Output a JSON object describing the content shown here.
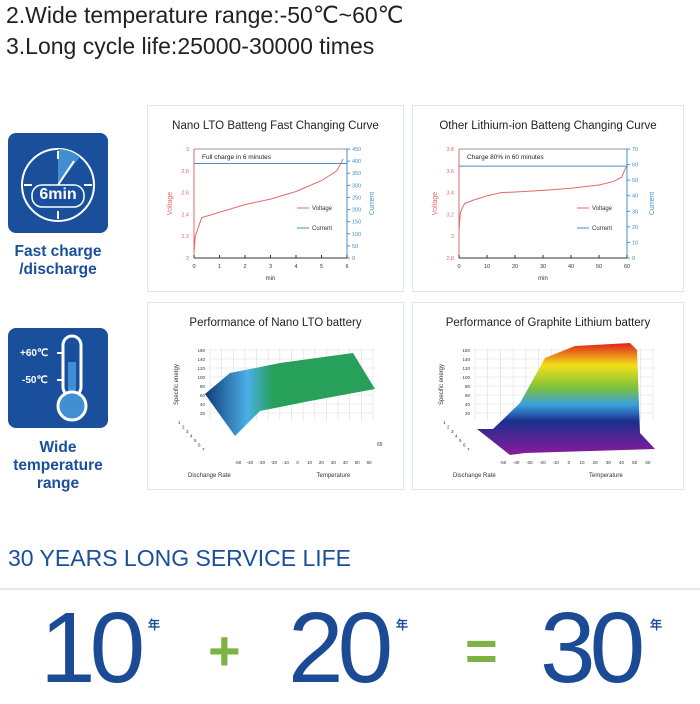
{
  "features_text": [
    "2.Wide temperature range:-50℃~60℃",
    "3.Long cycle life:25000-30000 times"
  ],
  "icons": [
    {
      "name": "stopwatch-icon",
      "label": "6min",
      "caption_lines": [
        "Fast charge",
        "/discharge"
      ]
    },
    {
      "name": "thermometer-icon",
      "high": "+60℃",
      "low": "-50℃",
      "caption_lines": [
        "Wide",
        "temperature",
        "range"
      ]
    }
  ],
  "colors": {
    "brand_blue": "#1a4f9c",
    "voltage": "#e06b6b",
    "current": "#4a8fc6",
    "accent_green": "#7cb342"
  },
  "chart_data": [
    {
      "type": "line",
      "title": "Nano LTO Batteng Fast Changing Curve",
      "annotation": "Full charge in 6 minutes",
      "xlabel": "min",
      "ylabel": "Voltage",
      "y2label": "Current",
      "xlim": [
        0,
        6
      ],
      "ylim": [
        2,
        3
      ],
      "y2lim": [
        0,
        450
      ],
      "xticks": [
        0,
        1,
        2,
        3,
        4,
        5,
        6
      ],
      "yticks": [
        2,
        2.2,
        2.4,
        2.6,
        2.8,
        3
      ],
      "y2ticks": [
        0,
        50,
        100,
        150,
        200,
        250,
        300,
        350,
        400,
        450
      ],
      "series": [
        {
          "name": "Voltage",
          "axis": "left",
          "x": [
            0,
            0.05,
            0.3,
            1,
            2,
            3,
            4,
            5,
            5.6,
            5.85
          ],
          "y": [
            2.05,
            2.2,
            2.37,
            2.42,
            2.49,
            2.54,
            2.61,
            2.71,
            2.8,
            2.91
          ]
        },
        {
          "name": "Current",
          "axis": "right",
          "x": [
            0,
            6
          ],
          "y": [
            390,
            390
          ]
        }
      ]
    },
    {
      "type": "line",
      "title": "Other Lithium-ion Batteng Changing Curve",
      "annotation": "Charge 80% in 60 minutes",
      "xlabel": "min",
      "ylabel": "Voltage",
      "y2label": "Current",
      "xlim": [
        0,
        60
      ],
      "ylim": [
        2.8,
        3.8
      ],
      "y2lim": [
        0,
        70
      ],
      "xticks": [
        0,
        10,
        20,
        30,
        40,
        50,
        60
      ],
      "yticks": [
        2.8,
        3.0,
        3.2,
        3.4,
        3.6,
        3.8
      ],
      "y2ticks": [
        0,
        10,
        20,
        30,
        40,
        50,
        60,
        70
      ],
      "series": [
        {
          "name": "Voltage",
          "axis": "left",
          "x": [
            0,
            0.5,
            2,
            5,
            10,
            15,
            20,
            30,
            40,
            50,
            55,
            58,
            60
          ],
          "y": [
            3.05,
            3.22,
            3.3,
            3.33,
            3.37,
            3.4,
            3.405,
            3.42,
            3.44,
            3.47,
            3.5,
            3.54,
            3.65
          ]
        },
        {
          "name": "Current",
          "axis": "right",
          "x": [
            0,
            60
          ],
          "y": [
            59,
            59
          ]
        }
      ]
    }
  ],
  "surfaces": [
    {
      "title": "Performance of Nano LTO battery",
      "zlabel": "Specific energy",
      "xlabel": "Dischange Rate",
      "ylabel": "Temperature",
      "zticks": [
        "160",
        "140",
        "120",
        "100",
        "80",
        "60",
        "40",
        "20"
      ],
      "rate_ticks": [
        "1",
        "2",
        "3",
        "4",
        "5",
        "6",
        "7"
      ],
      "temp_ticks": [
        "-50",
        "-40",
        "-30",
        "-20",
        "-10",
        "0",
        "10",
        "20",
        "30",
        "40",
        "50",
        "60"
      ],
      "extra_label": "65"
    },
    {
      "title": "Performance of Graphite Lithium battery",
      "zlabel": "Specific energy",
      "xlabel": "Dischange Rate",
      "ylabel": "Temperature",
      "zticks": [
        "160",
        "140",
        "120",
        "100",
        "80",
        "60",
        "40",
        "20"
      ],
      "rate_ticks": [
        "1",
        "2",
        "3",
        "4",
        "5",
        "6",
        "7"
      ],
      "temp_ticks": [
        "-50",
        "-40",
        "-30",
        "-20",
        "-10",
        "0",
        "10",
        "20",
        "30",
        "40",
        "50",
        "60"
      ]
    }
  ],
  "service": {
    "heading": "30 YEARS LONG SERVICE LIFE",
    "a": "10",
    "b": "20",
    "c": "30",
    "unit": "年",
    "plus": "+",
    "equals": "="
  }
}
